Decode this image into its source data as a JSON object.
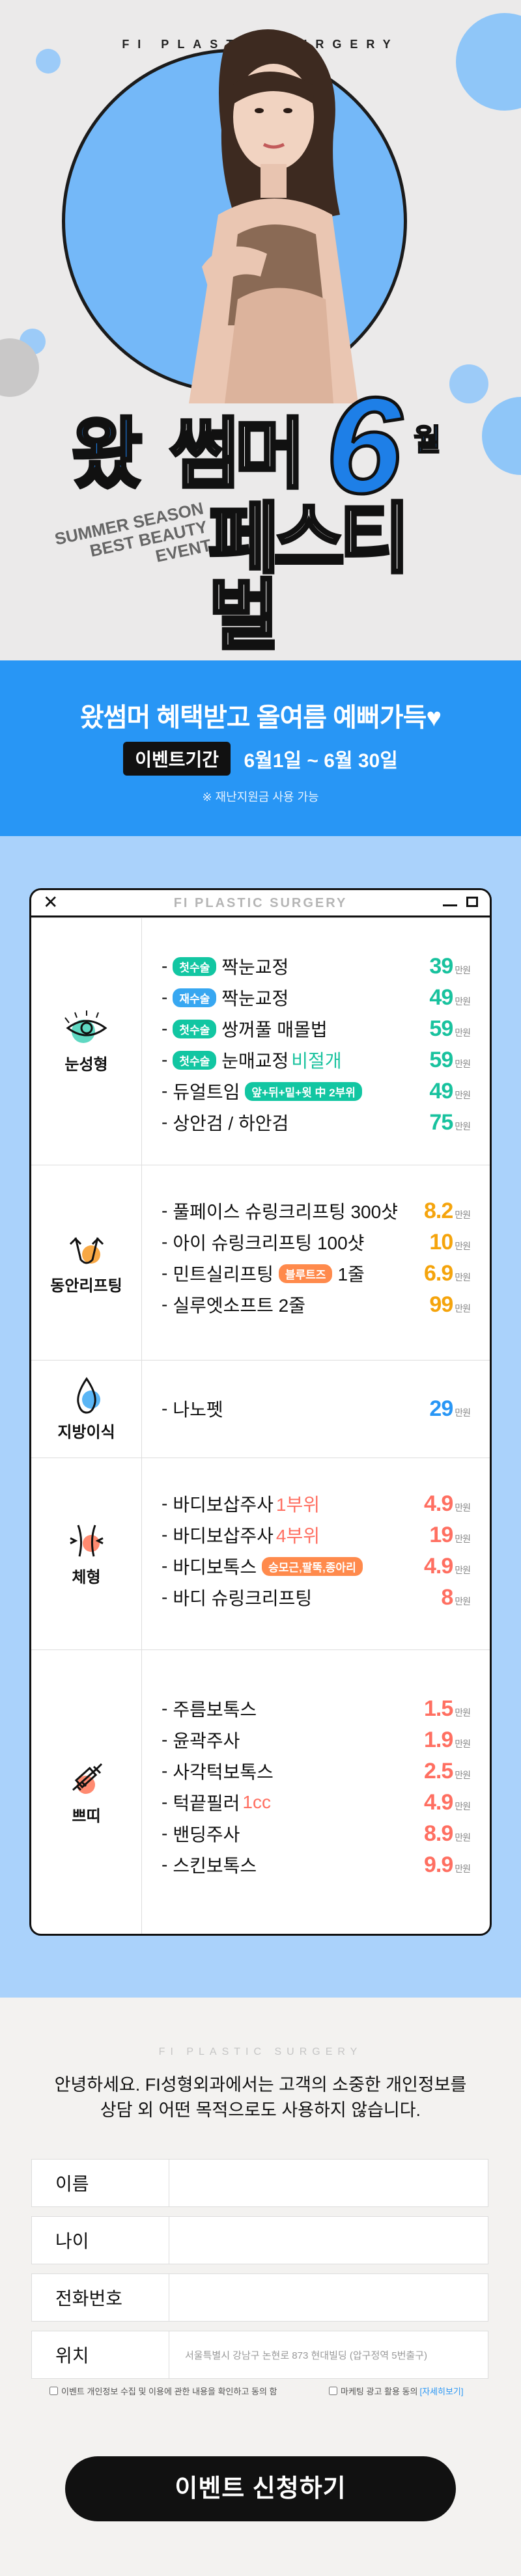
{
  "hero": {
    "brand": "FI PLASTIC SURGERY",
    "title_wat": "왔",
    "title_sseomeo": "썸머",
    "title_six": "6",
    "title_month": "월",
    "title_festival": "페스티벌",
    "eng_line1": "SUMMER SEASON",
    "eng_line2": "BEST BEAUTY",
    "eng_line3": "EVENT"
  },
  "banner": {
    "headline": "왔썸머 혜택받고 올여름 예뻐가득♥",
    "period_label": "이벤트기간",
    "period_value": "6월1일 ~ 6월 30일",
    "note": "※ 재난지원금 사용 가능"
  },
  "panel": {
    "title": "FI PLASTIC SURGERY",
    "unit": "만원",
    "categories": [
      {
        "name": "눈성형",
        "icon": "eye-icon",
        "items": [
          {
            "tag": "첫수술",
            "label": "짝눈교정",
            "price": "39"
          },
          {
            "tag": "재수술",
            "label": "짝눈교정",
            "price": "49"
          },
          {
            "tag": "첫수술",
            "label": "쌍꺼풀 매몰법",
            "price": "59"
          },
          {
            "tag": "첫수술",
            "label": "눈매교정",
            "hl": "비절개",
            "price": "59"
          },
          {
            "label": "듀얼트임",
            "tag2": "앞+뒤+밑+윗 中 2부위",
            "price": "49"
          },
          {
            "label": "상안검 / 하안검",
            "price": "75"
          }
        ]
      },
      {
        "name": "동안리프팅",
        "icon": "lifting-face-icon",
        "items": [
          {
            "label": "풀페이스 슈링크리프팅 300샷",
            "price": "8.2"
          },
          {
            "label": "아이 슈링크리프팅 100샷",
            "price": "10"
          },
          {
            "label": "민트실리프팅",
            "tag2": "블루트즈",
            "cnt": "1줄",
            "price": "6.9"
          },
          {
            "label": "실루엣소프트 2줄",
            "price": "99"
          }
        ]
      },
      {
        "name": "지방이식",
        "icon": "fat-drop-icon",
        "items": [
          {
            "label": "나노펫",
            "price": "29"
          }
        ]
      },
      {
        "name": "체형",
        "icon": "body-shape-icon",
        "items": [
          {
            "label": "바디보삽주사",
            "hl": "1부위",
            "price": "4.9"
          },
          {
            "label": "바디보삽주사",
            "hl": "4부위",
            "price": "19"
          },
          {
            "label": "바디보톡스",
            "tag2": "승모근,팔뚝,종아리",
            "price": "4.9"
          },
          {
            "label": "바디 슈링크리프팅",
            "price": "8"
          }
        ]
      },
      {
        "name": "쁘띠",
        "icon": "syringe-icon",
        "items": [
          {
            "label": "주름보톡스",
            "price": "1.5"
          },
          {
            "label": "윤곽주사",
            "price": "1.9"
          },
          {
            "label": "사각턱보톡스",
            "price": "2.5"
          },
          {
            "label": "턱끝필러",
            "hl": "1cc",
            "price": "4.9"
          },
          {
            "label": "밴딩주사",
            "price": "8.9"
          },
          {
            "label": "스킨보톡스",
            "price": "9.9"
          }
        ]
      }
    ]
  },
  "form": {
    "brand": "FI PLASTIC SURGERY",
    "intro_line1": "안녕하세요. FI성형외과에서는 고객의 소중한 개인정보를",
    "intro_line2": "상담 외 어떤 목적으로도 사용하지 않습니다.",
    "name_label": "이름",
    "age_label": "나이",
    "phone_label": "전화번호",
    "location_label": "위치",
    "location_value": "서울특별시 강남구 논현로 873 현대빌딩 (압구정역 5번출구)",
    "agree1": "이벤트 개인정보 수집 및 이용에 관한 내용을 확인하고 동의 함",
    "agree2": "마케팅 광고 활용 동의",
    "agree2_link": "[자세히보기]",
    "submit": "이벤트 신청하기"
  },
  "colors": {
    "accent": "#2896f5",
    "green": "#18c29e",
    "orange": "#f5a40c",
    "red": "#ff6f61",
    "light_blue": "#aad2fb"
  }
}
